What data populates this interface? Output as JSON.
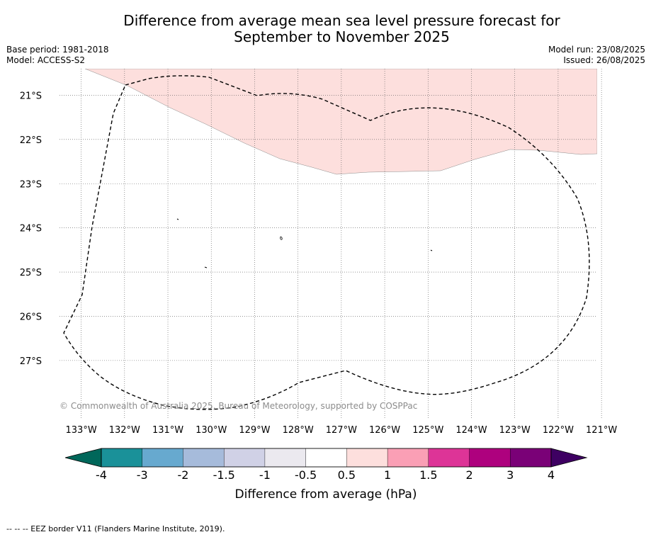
{
  "title_line1": "Difference from average mean sea level pressure forecast for",
  "title_line2": "September to November 2025",
  "base_period": "Base period: 1981-2018",
  "model": "Model: ACCESS-S2",
  "model_run": "Model run: 23/08/2025",
  "issued": "Issued: 26/08/2025",
  "copyright": "© Commonwealth of Australia 2025, Bureau of Meteorology, supported by COSPPac",
  "map": {
    "lon_range": [
      133.5,
      121.1
    ],
    "lat_range": [
      20.4,
      28.3
    ],
    "lon_ticks": [
      133,
      132,
      131,
      130,
      129,
      128,
      127,
      126,
      125,
      124,
      123,
      122,
      121
    ],
    "lat_ticks": [
      21,
      22,
      23,
      24,
      25,
      26,
      27
    ],
    "lon_labels": [
      "133°W",
      "132°W",
      "131°W",
      "130°W",
      "129°W",
      "128°W",
      "127°W",
      "126°W",
      "125°W",
      "124°W",
      "123°W",
      "122°W",
      "121°W"
    ],
    "lat_labels": [
      "21°S",
      "22°S",
      "23°S",
      "24°S",
      "25°S",
      "26°S",
      "27°S"
    ],
    "positive_region_color": "#fddfdd",
    "positive_region_category": "0.5 to 1"
  },
  "colorbar": {
    "label": "Difference from average (hPa)",
    "tick_labels": [
      "-4",
      "-3",
      "-2",
      "-1.5",
      "-1",
      "-0.5",
      "0.5",
      "1",
      "1.5",
      "2",
      "3",
      "4"
    ],
    "under_color": "#00675a",
    "over_color": "#3e0062",
    "colors": [
      "#1a9199",
      "#67a9cf",
      "#a6bbdb",
      "#d0d1e6",
      "#ebe9ef",
      "#ffffff",
      "#fddfdd",
      "#fa9fb5",
      "#dd3497",
      "#ae017e",
      "#7a0177"
    ]
  },
  "footnote": "--  --  -- EEZ border V11 (Flanders Marine Institute, 2019)."
}
